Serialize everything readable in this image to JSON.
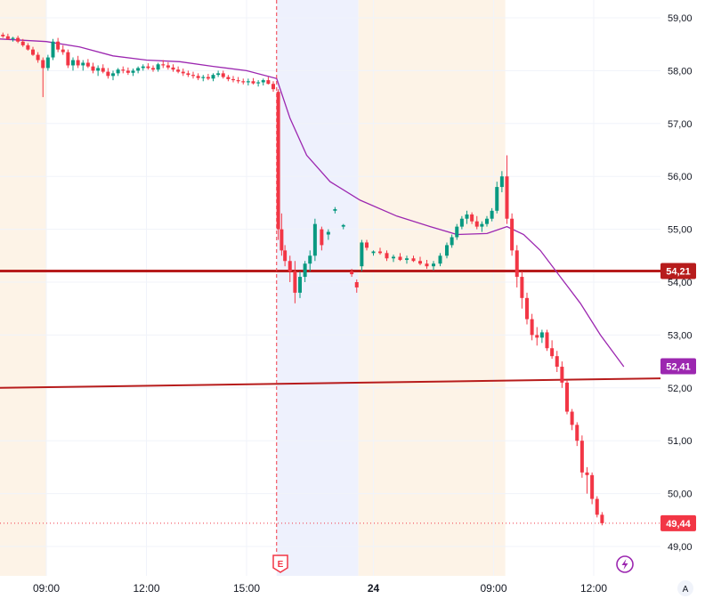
{
  "chart_data": {
    "type": "candlestick",
    "y_axis": {
      "ticks": [
        "59,00",
        "58,00",
        "57,00",
        "56,00",
        "55,00",
        "54,00",
        "53,00",
        "52,00",
        "51,00",
        "50,00",
        "49,00"
      ],
      "range": [
        48.75,
        59.25
      ]
    },
    "x_axis": {
      "ticks": [
        {
          "label": "09:00",
          "t": 0.0,
          "bold": false
        },
        {
          "label": "12:00",
          "t": 3.0,
          "bold": false
        },
        {
          "label": "15:00",
          "t": 6.0,
          "bold": false
        },
        {
          "label": "24",
          "t": 9.8,
          "bold": true
        },
        {
          "label": "09:00",
          "t": 13.4,
          "bold": false
        },
        {
          "label": "12:00",
          "t": 16.4,
          "bold": false
        }
      ]
    },
    "sessions": [
      {
        "kind": "pre-market",
        "t0": -1.4,
        "t1": 0.0,
        "color": "#fdf3e7"
      },
      {
        "kind": "after-hours",
        "t0": 6.9,
        "t1": 9.35,
        "color": "#eef1fd"
      },
      {
        "kind": "pre-market",
        "t0": 9.35,
        "t1": 13.75,
        "color": "#fdf3e7"
      }
    ],
    "earnings_marker": {
      "t": 6.9,
      "label": "E"
    },
    "horizontal_lines": [
      {
        "name": "level",
        "price": 54.21,
        "color": "#b71c1c"
      }
    ],
    "trend_lines": [
      {
        "from": [
          -1.4,
          52.0
        ],
        "to": [
          18.4,
          52.18
        ],
        "color": "#b71c1c"
      }
    ],
    "last_price_line": {
      "price": 49.44,
      "color": "#f23645"
    },
    "price_labels": [
      {
        "value": "54,21",
        "price": 54.21,
        "color": "#b71c1c"
      },
      {
        "value": "52,41",
        "price": 52.41,
        "color": "#9c27b0"
      },
      {
        "value": "49,44",
        "price": 49.44,
        "color": "#f23645"
      }
    ],
    "moving_average": {
      "color": "#9c27b0",
      "points": [
        [
          -1.4,
          58.6
        ],
        [
          0,
          58.55
        ],
        [
          1,
          58.45
        ],
        [
          2,
          58.28
        ],
        [
          3,
          58.2
        ],
        [
          4,
          58.17
        ],
        [
          5,
          58.08
        ],
        [
          6,
          58.0
        ],
        [
          6.9,
          57.85
        ],
        [
          7.3,
          57.1
        ],
        [
          7.8,
          56.4
        ],
        [
          8.5,
          55.9
        ],
        [
          9.4,
          55.55
        ],
        [
          10.5,
          55.25
        ],
        [
          11.5,
          55.05
        ],
        [
          12.3,
          54.9
        ],
        [
          13.2,
          54.92
        ],
        [
          13.8,
          55.05
        ],
        [
          14.3,
          54.9
        ],
        [
          14.8,
          54.6
        ],
        [
          15.4,
          54.1
        ],
        [
          16.0,
          53.6
        ],
        [
          16.6,
          53.0
        ],
        [
          17.3,
          52.4
        ]
      ]
    },
    "candles": [
      [
        -1.3,
        58.68,
        58.72,
        58.62,
        58.65
      ],
      [
        -1.15,
        58.65,
        58.7,
        58.58,
        58.6
      ],
      [
        -1.0,
        58.6,
        58.64,
        58.55,
        58.62
      ],
      [
        -0.85,
        58.62,
        58.66,
        58.52,
        58.55
      ],
      [
        -0.7,
        58.55,
        58.6,
        58.45,
        58.48
      ],
      [
        -0.55,
        58.48,
        58.52,
        58.38,
        58.4
      ],
      [
        -0.4,
        58.4,
        58.45,
        58.28,
        58.3
      ],
      [
        -0.25,
        58.3,
        58.35,
        58.15,
        58.2
      ],
      [
        -0.1,
        58.2,
        58.25,
        57.5,
        58.05
      ],
      [
        0.05,
        58.05,
        58.3,
        58.0,
        58.25
      ],
      [
        0.2,
        58.25,
        58.6,
        58.2,
        58.55
      ],
      [
        0.35,
        58.55,
        58.62,
        58.35,
        58.4
      ],
      [
        0.5,
        58.4,
        58.48,
        58.3,
        58.35
      ],
      [
        0.65,
        58.35,
        58.4,
        58.05,
        58.1
      ],
      [
        0.8,
        58.1,
        58.25,
        58.0,
        58.2
      ],
      [
        0.95,
        58.2,
        58.28,
        58.05,
        58.1
      ],
      [
        1.1,
        58.1,
        58.2,
        58.0,
        58.15
      ],
      [
        1.25,
        58.15,
        58.22,
        58.05,
        58.08
      ],
      [
        1.4,
        58.08,
        58.15,
        57.95,
        58.0
      ],
      [
        1.55,
        58.0,
        58.1,
        57.9,
        58.05
      ],
      [
        1.7,
        58.05,
        58.12,
        57.95,
        57.98
      ],
      [
        1.85,
        57.98,
        58.05,
        57.85,
        57.9
      ],
      [
        2.0,
        57.9,
        58.0,
        57.82,
        57.95
      ],
      [
        2.15,
        57.95,
        58.05,
        57.9,
        58.02
      ],
      [
        2.3,
        58.02,
        58.08,
        57.95,
        58.0
      ],
      [
        2.45,
        58.0,
        58.06,
        57.92,
        57.96
      ],
      [
        2.6,
        57.96,
        58.04,
        57.9,
        58.0
      ],
      [
        2.75,
        58.0,
        58.08,
        57.95,
        58.05
      ],
      [
        2.9,
        58.05,
        58.12,
        58.0,
        58.08
      ],
      [
        3.05,
        58.08,
        58.14,
        58.02,
        58.05
      ],
      [
        3.2,
        58.05,
        58.1,
        57.98,
        58.02
      ],
      [
        3.35,
        58.02,
        58.15,
        57.98,
        58.12
      ],
      [
        3.5,
        58.12,
        58.2,
        58.05,
        58.1
      ],
      [
        3.65,
        58.1,
        58.16,
        58.02,
        58.06
      ],
      [
        3.8,
        58.06,
        58.12,
        57.98,
        58.02
      ],
      [
        3.95,
        58.02,
        58.08,
        57.95,
        57.98
      ],
      [
        4.1,
        57.98,
        58.04,
        57.9,
        57.95
      ],
      [
        4.25,
        57.95,
        58.0,
        57.88,
        57.92
      ],
      [
        4.4,
        57.92,
        57.98,
        57.85,
        57.9
      ],
      [
        4.55,
        57.9,
        57.95,
        57.82,
        57.86
      ],
      [
        4.7,
        57.86,
        57.92,
        57.8,
        57.88
      ],
      [
        4.85,
        57.88,
        57.94,
        57.82,
        57.85
      ],
      [
        5.0,
        57.85,
        57.95,
        57.8,
        57.92
      ],
      [
        5.15,
        57.92,
        58.0,
        57.88,
        57.95
      ],
      [
        5.3,
        57.95,
        58.0,
        57.85,
        57.88
      ],
      [
        5.45,
        57.88,
        57.92,
        57.8,
        57.84
      ],
      [
        5.6,
        57.84,
        57.9,
        57.78,
        57.82
      ],
      [
        5.75,
        57.82,
        57.88,
        57.76,
        57.8
      ],
      [
        5.9,
        57.8,
        57.85,
        57.74,
        57.78
      ],
      [
        6.05,
        57.78,
        57.85,
        57.72,
        57.8
      ],
      [
        6.2,
        57.8,
        57.86,
        57.74,
        57.76
      ],
      [
        6.35,
        57.76,
        57.82,
        57.7,
        57.78
      ],
      [
        6.5,
        57.78,
        57.85,
        57.72,
        57.82
      ],
      [
        6.65,
        57.82,
        57.88,
        57.74,
        57.75
      ],
      [
        6.8,
        57.75,
        57.8,
        57.6,
        57.65
      ],
      [
        6.95,
        57.6,
        57.65,
        54.8,
        55.0
      ],
      [
        7.05,
        55.0,
        55.3,
        54.5,
        54.6
      ],
      [
        7.15,
        54.6,
        54.7,
        54.3,
        54.4
      ],
      [
        7.3,
        54.4,
        54.5,
        54.0,
        54.2
      ],
      [
        7.45,
        54.2,
        54.4,
        53.6,
        53.8
      ],
      [
        7.6,
        53.8,
        54.2,
        53.7,
        54.1
      ],
      [
        7.75,
        54.1,
        54.4,
        54.0,
        54.35
      ],
      [
        7.9,
        54.35,
        54.6,
        54.2,
        54.5
      ],
      [
        8.05,
        54.5,
        55.2,
        54.4,
        55.1
      ],
      [
        8.25,
        55.0,
        55.05,
        54.6,
        54.7
      ],
      [
        8.45,
        54.9,
        55.0,
        54.8,
        54.95
      ],
      [
        8.65,
        55.35,
        55.42,
        55.3,
        55.38
      ],
      [
        8.9,
        55.05,
        55.1,
        55.0,
        55.08
      ],
      [
        9.15,
        54.2,
        54.25,
        54.1,
        54.15
      ],
      [
        9.3,
        54.0,
        54.05,
        53.8,
        53.9
      ],
      [
        9.45,
        54.3,
        54.8,
        54.2,
        54.75
      ],
      [
        9.6,
        54.75,
        54.8,
        54.6,
        54.65
      ],
      [
        9.8,
        54.55,
        54.6,
        54.5,
        54.58
      ],
      [
        10.0,
        54.58,
        54.65,
        54.52,
        54.55
      ],
      [
        10.2,
        54.55,
        54.6,
        54.4,
        54.45
      ],
      [
        10.4,
        54.45,
        54.52,
        54.38,
        54.48
      ],
      [
        10.6,
        54.48,
        54.55,
        54.4,
        54.42
      ],
      [
        10.8,
        54.42,
        54.5,
        54.35,
        54.45
      ],
      [
        11.0,
        54.45,
        54.5,
        54.38,
        54.4
      ],
      [
        11.2,
        54.4,
        54.48,
        54.32,
        54.35
      ],
      [
        11.4,
        54.35,
        54.42,
        54.25,
        54.3
      ],
      [
        11.6,
        54.3,
        54.4,
        54.22,
        54.35
      ],
      [
        11.8,
        54.35,
        54.55,
        54.3,
        54.5
      ],
      [
        12.0,
        54.5,
        54.75,
        54.45,
        54.7
      ],
      [
        12.15,
        54.7,
        54.9,
        54.65,
        54.85
      ],
      [
        12.3,
        54.85,
        55.1,
        54.8,
        55.05
      ],
      [
        12.45,
        55.05,
        55.25,
        55.0,
        55.2
      ],
      [
        12.6,
        55.2,
        55.35,
        55.1,
        55.28
      ],
      [
        12.75,
        55.28,
        55.32,
        55.1,
        55.15
      ],
      [
        12.9,
        55.15,
        55.25,
        55.0,
        55.05
      ],
      [
        13.05,
        55.05,
        55.15,
        54.95,
        55.1
      ],
      [
        13.2,
        55.1,
        55.25,
        55.05,
        55.2
      ],
      [
        13.35,
        55.2,
        55.4,
        55.15,
        55.35
      ],
      [
        13.5,
        55.35,
        55.9,
        55.3,
        55.8
      ],
      [
        13.65,
        55.8,
        56.1,
        55.7,
        56.0
      ],
      [
        13.8,
        56.0,
        56.4,
        55.1,
        55.2
      ],
      [
        13.95,
        55.2,
        55.3,
        54.5,
        54.6
      ],
      [
        14.1,
        54.6,
        54.7,
        53.9,
        54.1
      ],
      [
        14.25,
        54.1,
        54.2,
        53.5,
        53.7
      ],
      [
        14.4,
        53.7,
        53.8,
        53.2,
        53.3
      ],
      [
        14.55,
        53.3,
        53.4,
        52.9,
        53.0
      ],
      [
        14.7,
        53.0,
        53.15,
        52.8,
        52.95
      ],
      [
        14.85,
        52.95,
        53.1,
        52.85,
        53.05
      ],
      [
        15.0,
        53.05,
        53.1,
        52.7,
        52.75
      ],
      [
        15.15,
        52.75,
        52.9,
        52.55,
        52.6
      ],
      [
        15.3,
        52.6,
        52.7,
        52.3,
        52.4
      ],
      [
        15.45,
        52.4,
        52.5,
        52.0,
        52.1
      ],
      [
        15.6,
        52.1,
        52.15,
        51.5,
        51.55
      ],
      [
        15.75,
        51.55,
        51.6,
        51.2,
        51.3
      ],
      [
        15.9,
        51.3,
        51.35,
        50.9,
        51.0
      ],
      [
        16.05,
        51.0,
        51.1,
        50.3,
        50.4
      ],
      [
        16.2,
        50.4,
        50.5,
        50.0,
        50.35
      ],
      [
        16.35,
        50.35,
        50.4,
        49.8,
        49.9
      ],
      [
        16.5,
        49.9,
        49.95,
        49.55,
        49.6
      ],
      [
        16.65,
        49.6,
        49.65,
        49.4,
        49.44
      ]
    ]
  },
  "icons": {
    "earnings": "earnings-event-icon",
    "lightning": "lightning-alert-icon",
    "auto_scale": "A"
  }
}
